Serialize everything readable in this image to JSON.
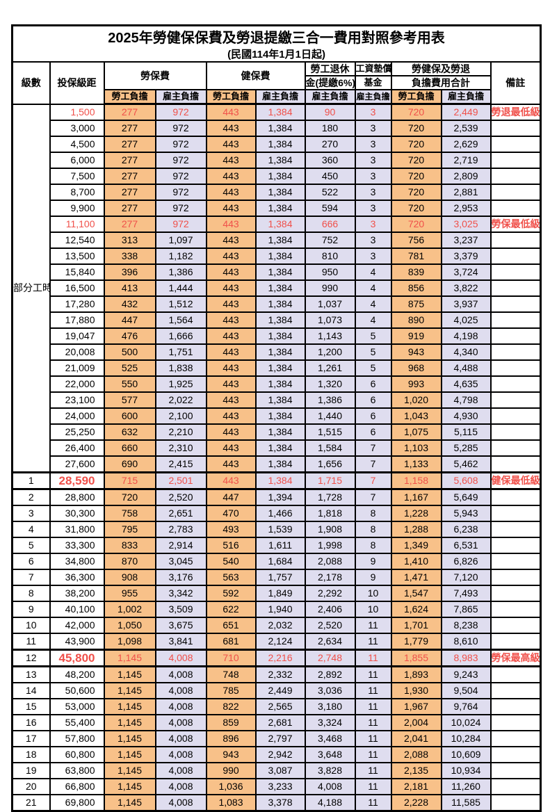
{
  "title": "2025年勞健保保費及勞退提繳三合一費用對照參考用表",
  "subtitle": "(民國114年1月1日起)",
  "columns": {
    "level": "級數",
    "bracket": "投保級距",
    "labor_insurance": "勞保費",
    "health_insurance": "健保費",
    "pension_line1": "勞工退休",
    "pension_line2": "金(提繳6%)",
    "wage_fund_line1": "工資墊償",
    "wage_fund_line2": "基金",
    "total_line1": "勞健保及勞退",
    "total_line2": "負擔費用合計",
    "remark": "備註",
    "employee": "勞工負擔",
    "employer": "雇主負擔"
  },
  "part_time_label": "部分工時",
  "part_time_rows": 23,
  "colors": {
    "employee_bg": "#F8C189",
    "employer_bg": "#DFDDEF",
    "highlight_text": "#F0504A"
  },
  "rows": [
    {
      "level": "",
      "bracket": "1,500",
      "values": [
        "277",
        "972",
        "443",
        "1,384",
        "90",
        "3",
        "720",
        "2,449"
      ],
      "remark": "勞退最低級距",
      "red": true
    },
    {
      "level": "",
      "bracket": "3,000",
      "values": [
        "277",
        "972",
        "443",
        "1,384",
        "180",
        "3",
        "720",
        "2,539"
      ],
      "remark": ""
    },
    {
      "level": "",
      "bracket": "4,500",
      "values": [
        "277",
        "972",
        "443",
        "1,384",
        "270",
        "3",
        "720",
        "2,629"
      ],
      "remark": ""
    },
    {
      "level": "",
      "bracket": "6,000",
      "values": [
        "277",
        "972",
        "443",
        "1,384",
        "360",
        "3",
        "720",
        "2,719"
      ],
      "remark": ""
    },
    {
      "level": "",
      "bracket": "7,500",
      "values": [
        "277",
        "972",
        "443",
        "1,384",
        "450",
        "3",
        "720",
        "2,809"
      ],
      "remark": ""
    },
    {
      "level": "",
      "bracket": "8,700",
      "values": [
        "277",
        "972",
        "443",
        "1,384",
        "522",
        "3",
        "720",
        "2,881"
      ],
      "remark": ""
    },
    {
      "level": "",
      "bracket": "9,900",
      "values": [
        "277",
        "972",
        "443",
        "1,384",
        "594",
        "3",
        "720",
        "2,953"
      ],
      "remark": ""
    },
    {
      "level": "",
      "bracket": "11,100",
      "values": [
        "277",
        "972",
        "443",
        "1,384",
        "666",
        "3",
        "720",
        "3,025"
      ],
      "remark": "勞保最低級距",
      "red": true
    },
    {
      "level": "",
      "bracket": "12,540",
      "values": [
        "313",
        "1,097",
        "443",
        "1,384",
        "752",
        "3",
        "756",
        "3,237"
      ],
      "remark": ""
    },
    {
      "level": "",
      "bracket": "13,500",
      "values": [
        "338",
        "1,182",
        "443",
        "1,384",
        "810",
        "3",
        "781",
        "3,379"
      ],
      "remark": ""
    },
    {
      "level": "",
      "bracket": "15,840",
      "values": [
        "396",
        "1,386",
        "443",
        "1,384",
        "950",
        "4",
        "839",
        "3,724"
      ],
      "remark": ""
    },
    {
      "level": "",
      "bracket": "16,500",
      "values": [
        "413",
        "1,444",
        "443",
        "1,384",
        "990",
        "4",
        "856",
        "3,822"
      ],
      "remark": ""
    },
    {
      "level": "",
      "bracket": "17,280",
      "values": [
        "432",
        "1,512",
        "443",
        "1,384",
        "1,037",
        "4",
        "875",
        "3,937"
      ],
      "remark": ""
    },
    {
      "level": "",
      "bracket": "17,880",
      "values": [
        "447",
        "1,564",
        "443",
        "1,384",
        "1,073",
        "4",
        "890",
        "4,025"
      ],
      "remark": ""
    },
    {
      "level": "",
      "bracket": "19,047",
      "values": [
        "476",
        "1,666",
        "443",
        "1,384",
        "1,143",
        "5",
        "919",
        "4,198"
      ],
      "remark": ""
    },
    {
      "level": "",
      "bracket": "20,008",
      "values": [
        "500",
        "1,751",
        "443",
        "1,384",
        "1,200",
        "5",
        "943",
        "4,340"
      ],
      "remark": ""
    },
    {
      "level": "",
      "bracket": "21,009",
      "values": [
        "525",
        "1,838",
        "443",
        "1,384",
        "1,261",
        "5",
        "968",
        "4,488"
      ],
      "remark": ""
    },
    {
      "level": "",
      "bracket": "22,000",
      "values": [
        "550",
        "1,925",
        "443",
        "1,384",
        "1,320",
        "6",
        "993",
        "4,635"
      ],
      "remark": ""
    },
    {
      "level": "",
      "bracket": "23,100",
      "values": [
        "577",
        "2,022",
        "443",
        "1,384",
        "1,386",
        "6",
        "1,020",
        "4,798"
      ],
      "remark": ""
    },
    {
      "level": "",
      "bracket": "24,000",
      "values": [
        "600",
        "2,100",
        "443",
        "1,384",
        "1,440",
        "6",
        "1,043",
        "4,930"
      ],
      "remark": ""
    },
    {
      "level": "",
      "bracket": "25,250",
      "values": [
        "632",
        "2,210",
        "443",
        "1,384",
        "1,515",
        "6",
        "1,075",
        "5,115"
      ],
      "remark": ""
    },
    {
      "level": "",
      "bracket": "26,400",
      "values": [
        "660",
        "2,310",
        "443",
        "1,384",
        "1,584",
        "7",
        "1,103",
        "5,285"
      ],
      "remark": ""
    },
    {
      "level": "",
      "bracket": "27,600",
      "values": [
        "690",
        "2,415",
        "443",
        "1,384",
        "1,656",
        "7",
        "1,133",
        "5,462"
      ],
      "remark": ""
    },
    {
      "level": "1",
      "bracket": "28,590",
      "values": [
        "715",
        "2,501",
        "443",
        "1,384",
        "1,715",
        "7",
        "1,158",
        "5,608"
      ],
      "remark": "健保最低級距",
      "red": true,
      "thick": true,
      "big": true
    },
    {
      "level": "2",
      "bracket": "28,800",
      "values": [
        "720",
        "2,520",
        "447",
        "1,394",
        "1,728",
        "7",
        "1,167",
        "5,649"
      ],
      "remark": ""
    },
    {
      "level": "3",
      "bracket": "30,300",
      "values": [
        "758",
        "2,651",
        "470",
        "1,466",
        "1,818",
        "8",
        "1,228",
        "5,943"
      ],
      "remark": ""
    },
    {
      "level": "4",
      "bracket": "31,800",
      "values": [
        "795",
        "2,783",
        "493",
        "1,539",
        "1,908",
        "8",
        "1,288",
        "6,238"
      ],
      "remark": ""
    },
    {
      "level": "5",
      "bracket": "33,300",
      "values": [
        "833",
        "2,914",
        "516",
        "1,611",
        "1,998",
        "8",
        "1,349",
        "6,531"
      ],
      "remark": ""
    },
    {
      "level": "6",
      "bracket": "34,800",
      "values": [
        "870",
        "3,045",
        "540",
        "1,684",
        "2,088",
        "9",
        "1,410",
        "6,826"
      ],
      "remark": ""
    },
    {
      "level": "7",
      "bracket": "36,300",
      "values": [
        "908",
        "3,176",
        "563",
        "1,757",
        "2,178",
        "9",
        "1,471",
        "7,120"
      ],
      "remark": ""
    },
    {
      "level": "8",
      "bracket": "38,200",
      "values": [
        "955",
        "3,342",
        "592",
        "1,849",
        "2,292",
        "10",
        "1,547",
        "7,493"
      ],
      "remark": ""
    },
    {
      "level": "9",
      "bracket": "40,100",
      "values": [
        "1,002",
        "3,509",
        "622",
        "1,940",
        "2,406",
        "10",
        "1,624",
        "7,865"
      ],
      "remark": ""
    },
    {
      "level": "10",
      "bracket": "42,000",
      "values": [
        "1,050",
        "3,675",
        "651",
        "2,032",
        "2,520",
        "11",
        "1,701",
        "8,238"
      ],
      "remark": ""
    },
    {
      "level": "11",
      "bracket": "43,900",
      "values": [
        "1,098",
        "3,841",
        "681",
        "2,124",
        "2,634",
        "11",
        "1,779",
        "8,610"
      ],
      "remark": ""
    },
    {
      "level": "12",
      "bracket": "45,800",
      "values": [
        "1,145",
        "4,008",
        "710",
        "2,216",
        "2,748",
        "11",
        "1,855",
        "8,983"
      ],
      "remark": "勞保最高級距",
      "red": true,
      "thick": true,
      "big": true
    },
    {
      "level": "13",
      "bracket": "48,200",
      "values": [
        "1,145",
        "4,008",
        "748",
        "2,332",
        "2,892",
        "11",
        "1,893",
        "9,243"
      ],
      "remark": ""
    },
    {
      "level": "14",
      "bracket": "50,600",
      "values": [
        "1,145",
        "4,008",
        "785",
        "2,449",
        "3,036",
        "11",
        "1,930",
        "9,504"
      ],
      "remark": ""
    },
    {
      "level": "15",
      "bracket": "53,000",
      "values": [
        "1,145",
        "4,008",
        "822",
        "2,565",
        "3,180",
        "11",
        "1,967",
        "9,764"
      ],
      "remark": ""
    },
    {
      "level": "16",
      "bracket": "55,400",
      "values": [
        "1,145",
        "4,008",
        "859",
        "2,681",
        "3,324",
        "11",
        "2,004",
        "10,024"
      ],
      "remark": ""
    },
    {
      "level": "17",
      "bracket": "57,800",
      "values": [
        "1,145",
        "4,008",
        "896",
        "2,797",
        "3,468",
        "11",
        "2,041",
        "10,284"
      ],
      "remark": ""
    },
    {
      "level": "18",
      "bracket": "60,800",
      "values": [
        "1,145",
        "4,008",
        "943",
        "2,942",
        "3,648",
        "11",
        "2,088",
        "10,609"
      ],
      "remark": ""
    },
    {
      "level": "19",
      "bracket": "63,800",
      "values": [
        "1,145",
        "4,008",
        "990",
        "3,087",
        "3,828",
        "11",
        "2,135",
        "10,934"
      ],
      "remark": ""
    },
    {
      "level": "20",
      "bracket": "66,800",
      "values": [
        "1,145",
        "4,008",
        "1,036",
        "3,233",
        "4,008",
        "11",
        "2,181",
        "11,260"
      ],
      "remark": ""
    },
    {
      "level": "21",
      "bracket": "69,800",
      "values": [
        "1,145",
        "4,008",
        "1,083",
        "3,378",
        "4,188",
        "11",
        "2,228",
        "11,585"
      ],
      "remark": ""
    }
  ],
  "value_column_kinds": [
    "emp",
    "er",
    "emp",
    "er",
    "er",
    "er",
    "emp",
    "er"
  ],
  "value_column_names": [
    "labor-insurance-employee",
    "labor-insurance-employer",
    "health-insurance-employee",
    "health-insurance-employer",
    "pension-employer",
    "wage-fund-employer",
    "total-employee",
    "total-employer"
  ]
}
